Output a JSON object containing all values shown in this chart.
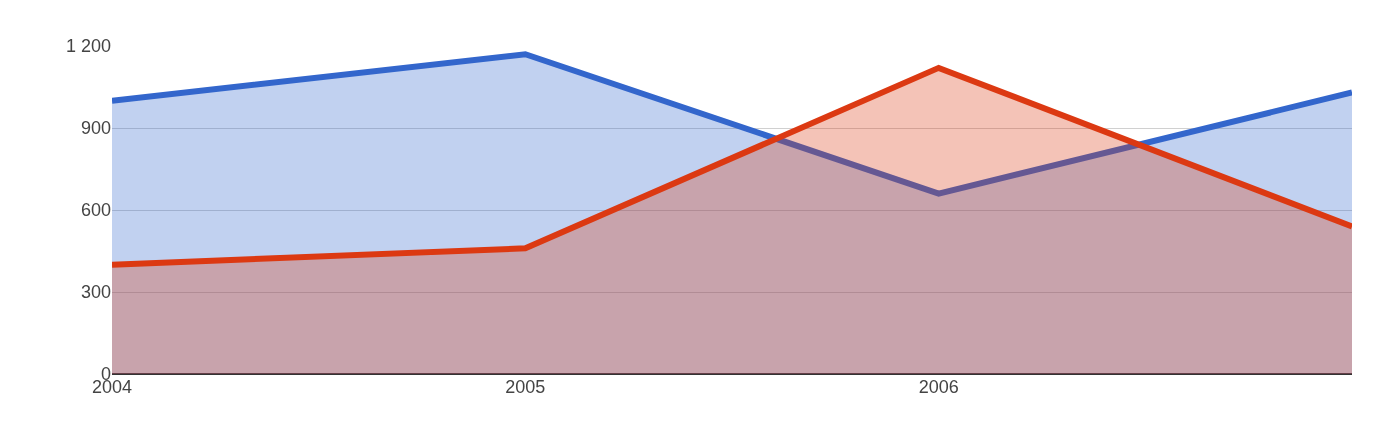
{
  "chart_data": {
    "type": "area",
    "categories": [
      "2004",
      "2005",
      "2006",
      null
    ],
    "series": [
      {
        "color": "#3366cc",
        "values": [
          1000,
          1170,
          660,
          1030
        ]
      },
      {
        "color": "#dc3912",
        "values": [
          400,
          460,
          1120,
          540
        ]
      }
    ],
    "ylim": [
      0,
      1200
    ],
    "yticks": [
      0,
      300,
      600,
      900,
      {
        "value": 1200,
        "label": "1 200"
      }
    ],
    "grid": "y"
  }
}
